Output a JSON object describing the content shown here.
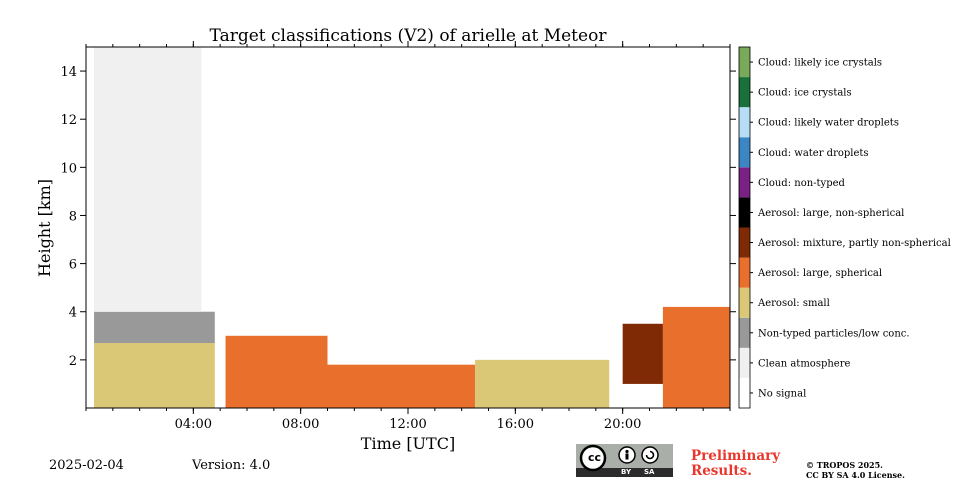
{
  "chart_data": {
    "type": "heatmap",
    "title": "Target classifications (V2) of arielle at Meteor",
    "xlabel": "Time [UTC]",
    "ylabel": "Height [km]",
    "xlim": [
      0,
      24
    ],
    "ylim": [
      0,
      15
    ],
    "x_ticks": [
      4,
      8,
      12,
      16,
      20
    ],
    "x_tick_labels": [
      "04:00",
      "08:00",
      "12:00",
      "16:00",
      "20:00"
    ],
    "y_ticks": [
      2,
      4,
      6,
      8,
      10,
      12,
      14
    ],
    "y_tick_labels": [
      "2",
      "4",
      "6",
      "8",
      "10",
      "12",
      "14"
    ],
    "legend_placement": "right (colorbar)",
    "classes": [
      {
        "name": "No signal",
        "color": "#ffffff"
      },
      {
        "name": "Clean atmosphere",
        "color": "#f0f0f0"
      },
      {
        "name": "Non-typed particles/low conc.",
        "color": "#999999"
      },
      {
        "name": "Aerosol: small",
        "color": "#dbc876"
      },
      {
        "name": "Aerosol: large, spherical",
        "color": "#e8702c"
      },
      {
        "name": "Aerosol: mixture, partly non-spherical",
        "color": "#7f2a04"
      },
      {
        "name": "Aerosol: large, non-spherical",
        "color": "#000000"
      },
      {
        "name": "Cloud: non-typed",
        "color": "#7a2183"
      },
      {
        "name": "Cloud: water droplets",
        "color": "#3d86c6"
      },
      {
        "name": "Cloud: likely water droplets",
        "color": "#b6dcf6"
      },
      {
        "name": "Cloud: ice crystals",
        "color": "#18703a"
      },
      {
        "name": "Cloud: likely ice crystals",
        "color": "#79a95b"
      }
    ],
    "dominant_regions": [
      {
        "class": "Aerosol: small",
        "time_range": [
          0.3,
          4.8
        ],
        "height_range": [
          0,
          2.7
        ]
      },
      {
        "class": "Non-typed particles/low conc.",
        "time_range": [
          0.3,
          4.8
        ],
        "height_range": [
          2.7,
          4.0
        ]
      },
      {
        "class": "Clean atmosphere",
        "time_range": [
          0.3,
          4.3
        ],
        "height_range": [
          4.0,
          15.0
        ]
      },
      {
        "class": "Aerosol: large, spherical",
        "time_range": [
          5.2,
          9.0
        ],
        "height_range": [
          0,
          3.0
        ]
      },
      {
        "class": "Aerosol: large, spherical",
        "time_range": [
          9.0,
          14.5
        ],
        "height_range": [
          0,
          1.8
        ]
      },
      {
        "class": "Aerosol: small",
        "time_range": [
          14.5,
          19.5
        ],
        "height_range": [
          0,
          2.0
        ]
      },
      {
        "class": "Aerosol: mixture, partly non-spherical",
        "time_range": [
          20.0,
          21.5
        ],
        "height_range": [
          1.0,
          3.5
        ]
      },
      {
        "class": "Aerosol: large, spherical",
        "time_range": [
          21.5,
          24.0
        ],
        "height_range": [
          0,
          4.2
        ]
      }
    ]
  },
  "footer": {
    "date": "2025-02-04",
    "version": "Version: 4.0",
    "license_badge": {
      "cc": "cc",
      "by": "BY",
      "sa": "SA"
    },
    "preliminary_line1": "Preliminary",
    "preliminary_line2": "Results.",
    "copyright_line1": "© TROPOS 2025.",
    "copyright_line2": "CC BY SA 4.0 License."
  }
}
